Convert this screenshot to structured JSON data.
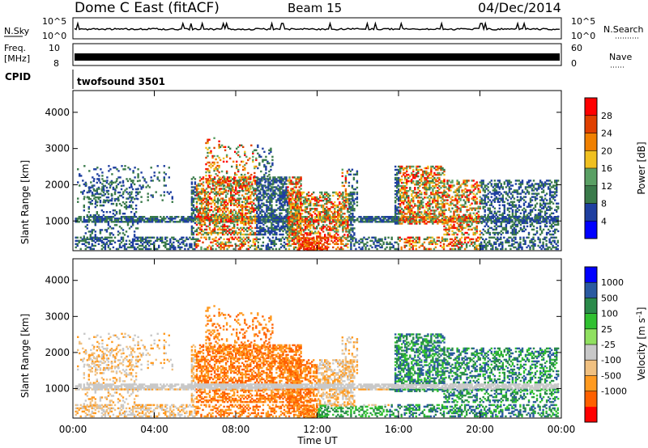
{
  "header": {
    "station": "Dome C East (fitACF)",
    "beam": "Beam 15",
    "date": "04/Dec/2014"
  },
  "strips": {
    "nsky_label": "N.Sky",
    "nsky_ticks": [
      "10^5",
      "10^0"
    ],
    "nsearch_label": "N.Search",
    "freq_label_1": "Freq.",
    "freq_label_2": "[MHz]",
    "freq_ticks": [
      "10",
      "8"
    ],
    "nave_label": "Nave",
    "nave_ticks": [
      "60",
      "0"
    ],
    "cpid_label": "CPID",
    "cpid_value": "twofsound 3501"
  },
  "colors": {
    "power": [
      "#0000ff",
      "#1f3fa0",
      "#3a7a4a",
      "#5aa064",
      "#f0c020",
      "#f08000",
      "#e04000",
      "#ff0000"
    ],
    "velocity": [
      "#ff0000",
      "#ff6000",
      "#ff9a20",
      "#f0c080",
      "#c8c8c8",
      "#90e060",
      "#30c030",
      "#2a8a4a",
      "#2a5aa0",
      "#0000ff"
    ]
  },
  "chart_data": [
    {
      "type": "heatmap",
      "title": "",
      "ylabel": "Slant Range [km]",
      "xlabel": "",
      "x_range": [
        "00:00",
        "24:00"
      ],
      "ylim": [
        180,
        4600
      ],
      "x_ticks": [
        "00:00",
        "04:00",
        "08:00",
        "12:00",
        "16:00",
        "20:00",
        "00:00"
      ],
      "y_ticks": [
        1000,
        2000,
        3000,
        4000
      ],
      "colorbar": {
        "label": "Power [dB]",
        "ticks": [
          4,
          8,
          12,
          16,
          20,
          24,
          28
        ]
      }
    },
    {
      "type": "heatmap",
      "title": "",
      "ylabel": "Slant Range [km]",
      "xlabel": "Time UT",
      "x_range": [
        "00:00",
        "24:00"
      ],
      "ylim": [
        180,
        4600
      ],
      "x_ticks": [
        "00:00",
        "04:00",
        "08:00",
        "12:00",
        "16:00",
        "20:00",
        "00:00"
      ],
      "y_ticks": [
        1000,
        2000,
        3000,
        4000
      ],
      "colorbar": {
        "label": "Velocity [m s^-1]",
        "ticks": [
          1000,
          500,
          100,
          25,
          -25,
          -100,
          -500,
          -1000
        ]
      }
    }
  ]
}
